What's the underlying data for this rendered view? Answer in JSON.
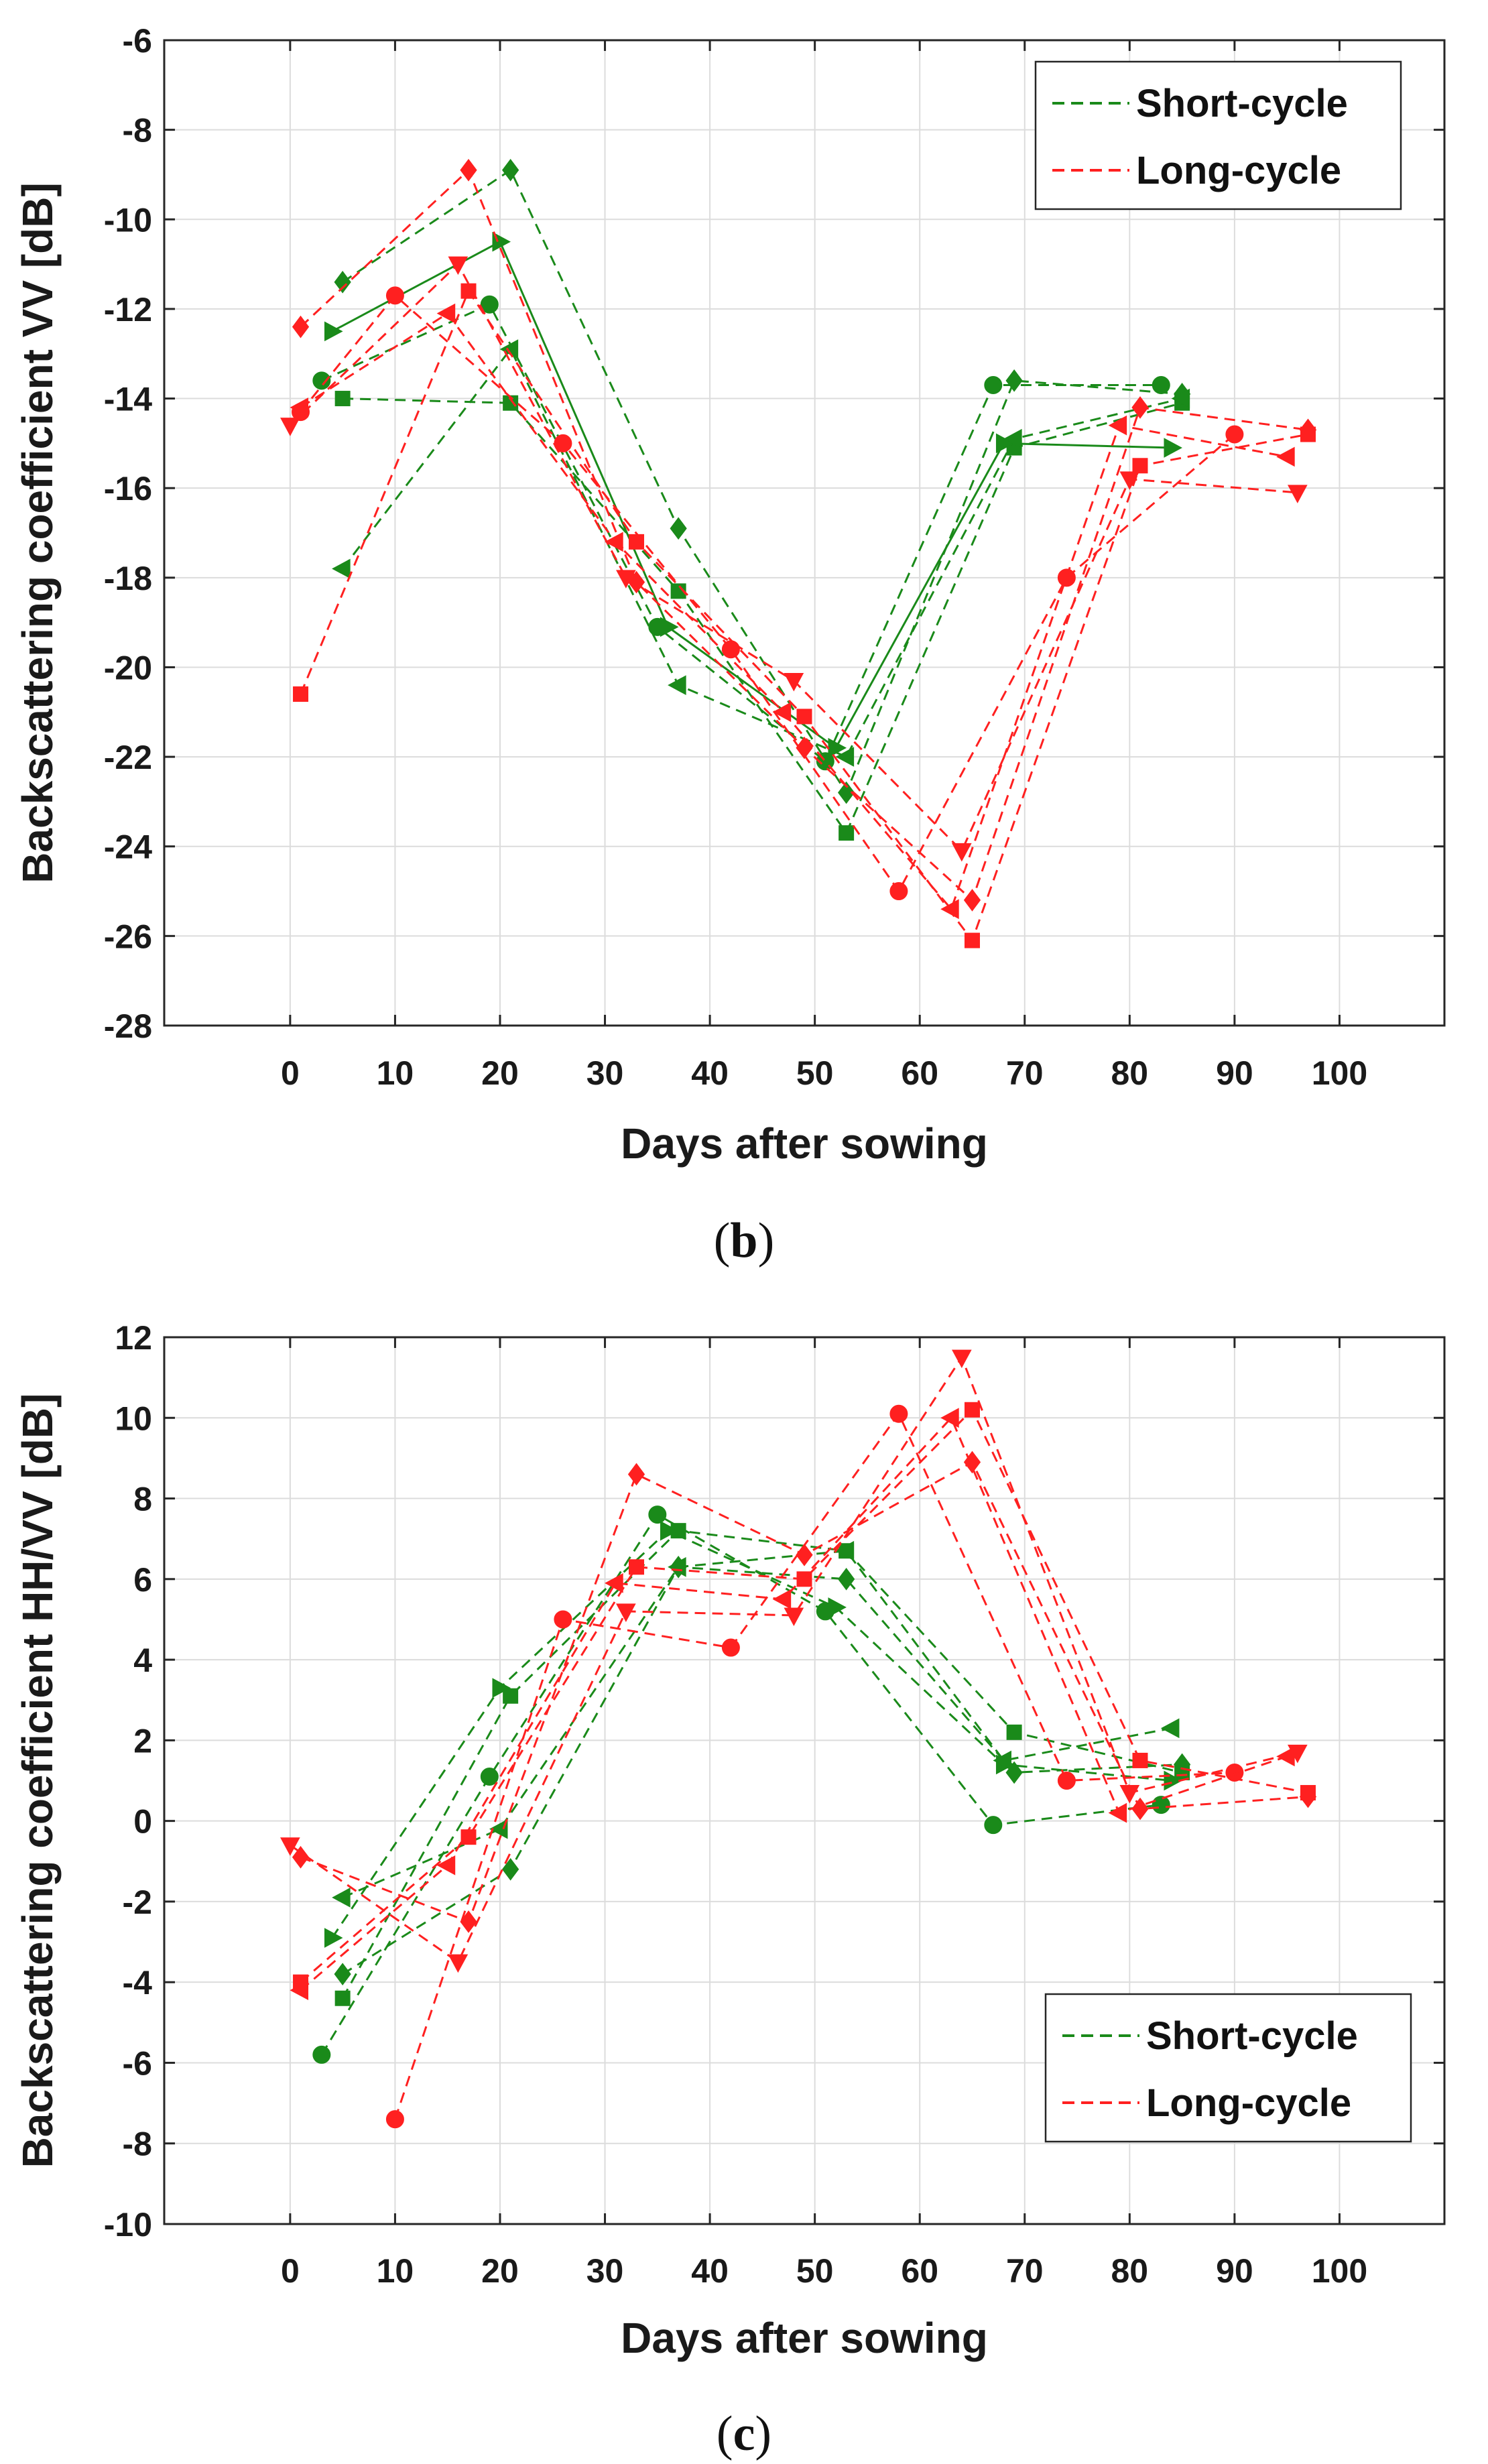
{
  "chart_data": [
    {
      "type": "line",
      "panel": "b",
      "caption_label": "b",
      "xlabel": "Days after sowing",
      "ylabel": "Backscattering coefficient VV [dB]",
      "xlim": [
        -12,
        110
      ],
      "ylim": [
        -28,
        -6
      ],
      "xticks": [
        0,
        10,
        20,
        30,
        40,
        50,
        60,
        70,
        80,
        90,
        100
      ],
      "yticks": [
        -28,
        -26,
        -24,
        -22,
        -20,
        -18,
        -16,
        -14,
        -12,
        -10,
        -8,
        -6
      ],
      "grid": true,
      "legend": {
        "position": "top-right",
        "entries": [
          {
            "label": "Short-cycle",
            "color": "#1a8a1a"
          },
          {
            "label": "Long-cycle",
            "color": "#ff2020"
          }
        ]
      },
      "series": [
        {
          "name": "Short-cycle",
          "color": "#1a8a1a",
          "marker": "circle",
          "style": "dashed",
          "points": [
            [
              3,
              -13.6
            ],
            [
              19,
              -11.9
            ],
            [
              35,
              -19.1
            ],
            [
              51,
              -22.1
            ],
            [
              67,
              -13.7
            ],
            [
              83,
              -13.7
            ]
          ]
        },
        {
          "name": "Short-cycle",
          "color": "#1a8a1a",
          "marker": "square",
          "style": "dashed",
          "points": [
            [
              5,
              -14.0
            ],
            [
              21,
              -14.1
            ],
            [
              37,
              -18.3
            ],
            [
              53,
              -23.7
            ],
            [
              69,
              -15.1
            ],
            [
              85,
              -14.1
            ]
          ]
        },
        {
          "name": "Short-cycle",
          "color": "#1a8a1a",
          "marker": "diamond",
          "style": "dashed",
          "points": [
            [
              5,
              -11.4
            ],
            [
              21,
              -8.9
            ],
            [
              37,
              -16.9
            ],
            [
              53,
              -22.8
            ],
            [
              69,
              -13.6
            ],
            [
              85,
              -13.9
            ]
          ]
        },
        {
          "name": "Short-cycle",
          "color": "#1a8a1a",
          "marker": "tri-right",
          "style": "solid",
          "points": [
            [
              4,
              -12.5
            ],
            [
              20,
              -10.5
            ],
            [
              36,
              -19.1
            ],
            [
              52,
              -21.8
            ],
            [
              68,
              -15.0
            ],
            [
              84,
              -15.1
            ]
          ]
        },
        {
          "name": "Short-cycle",
          "color": "#1a8a1a",
          "marker": "tri-left",
          "style": "dashed",
          "points": [
            [
              5,
              -17.8
            ],
            [
              21,
              -12.9
            ],
            [
              37,
              -20.4
            ],
            [
              53,
              -22.0
            ],
            [
              69,
              -14.9
            ],
            [
              85,
              -14.0
            ]
          ]
        },
        {
          "name": "Long-cycle",
          "color": "#ff2020",
          "marker": "circle",
          "style": "dashed",
          "points": [
            [
              1,
              -14.3
            ],
            [
              10,
              -11.7
            ],
            [
              26,
              -15.0
            ],
            [
              42,
              -19.6
            ],
            [
              58,
              -25.0
            ],
            [
              74,
              -18.0
            ],
            [
              90,
              -14.8
            ]
          ]
        },
        {
          "name": "Long-cycle",
          "color": "#ff2020",
          "marker": "square",
          "style": "dashed",
          "points": [
            [
              1,
              -20.6
            ],
            [
              17,
              -11.6
            ],
            [
              33,
              -17.2
            ],
            [
              49,
              -21.1
            ],
            [
              65,
              -26.1
            ],
            [
              81,
              -15.5
            ],
            [
              97,
              -14.8
            ]
          ]
        },
        {
          "name": "Long-cycle",
          "color": "#ff2020",
          "marker": "diamond",
          "style": "dashed",
          "points": [
            [
              1,
              -12.4
            ],
            [
              17,
              -8.9
            ],
            [
              33,
              -18.1
            ],
            [
              49,
              -21.8
            ],
            [
              65,
              -25.2
            ],
            [
              81,
              -14.2
            ],
            [
              97,
              -14.7
            ]
          ]
        },
        {
          "name": "Long-cycle",
          "color": "#ff2020",
          "marker": "tri-down",
          "style": "dashed",
          "points": [
            [
              0,
              -14.6
            ],
            [
              16,
              -11.0
            ],
            [
              32,
              -18.0
            ],
            [
              48,
              -20.3
            ],
            [
              64,
              -24.1
            ],
            [
              80,
              -15.8
            ],
            [
              96,
              -16.1
            ]
          ]
        },
        {
          "name": "Long-cycle",
          "color": "#ff2020",
          "marker": "tri-left",
          "style": "dashed",
          "points": [
            [
              1,
              -14.2
            ],
            [
              15,
              -12.1
            ],
            [
              31,
              -17.2
            ],
            [
              47,
              -21.0
            ],
            [
              63,
              -25.4
            ],
            [
              79,
              -14.6
            ],
            [
              95,
              -15.3
            ]
          ]
        }
      ]
    },
    {
      "type": "line",
      "panel": "c",
      "caption_label": "c",
      "xlabel": "Days after sowing",
      "ylabel": "Backscattering coefficient HH/VV [dB]",
      "xlim": [
        -12,
        110
      ],
      "ylim": [
        -10,
        12
      ],
      "xticks": [
        0,
        10,
        20,
        30,
        40,
        50,
        60,
        70,
        80,
        90,
        100
      ],
      "yticks": [
        -10,
        -8,
        -6,
        -4,
        -2,
        0,
        2,
        4,
        6,
        8,
        10,
        12
      ],
      "grid": true,
      "legend": {
        "position": "bottom-right",
        "entries": [
          {
            "label": "Short-cycle",
            "color": "#1a8a1a"
          },
          {
            "label": "Long-cycle",
            "color": "#ff2020"
          }
        ]
      },
      "series": [
        {
          "name": "Short-cycle",
          "color": "#1a8a1a",
          "marker": "circle",
          "style": "dashed",
          "points": [
            [
              3,
              -5.8
            ],
            [
              19,
              1.1
            ],
            [
              35,
              7.6
            ],
            [
              51,
              5.2
            ],
            [
              67,
              -0.1
            ],
            [
              83,
              0.4
            ]
          ]
        },
        {
          "name": "Short-cycle",
          "color": "#1a8a1a",
          "marker": "square",
          "style": "dashed",
          "points": [
            [
              5,
              -4.4
            ],
            [
              21,
              3.1
            ],
            [
              37,
              7.2
            ],
            [
              53,
              6.7
            ],
            [
              69,
              2.2
            ],
            [
              85,
              1.2
            ]
          ]
        },
        {
          "name": "Short-cycle",
          "color": "#1a8a1a",
          "marker": "diamond",
          "style": "dashed",
          "points": [
            [
              5,
              -3.8
            ],
            [
              21,
              -1.2
            ],
            [
              37,
              6.3
            ],
            [
              53,
              6.0
            ],
            [
              69,
              1.2
            ],
            [
              85,
              1.4
            ]
          ]
        },
        {
          "name": "Short-cycle",
          "color": "#1a8a1a",
          "marker": "tri-right",
          "style": "dashed",
          "points": [
            [
              4,
              -2.9
            ],
            [
              20,
              3.3
            ],
            [
              36,
              7.2
            ],
            [
              52,
              5.3
            ],
            [
              68,
              1.4
            ],
            [
              84,
              1.0
            ]
          ]
        },
        {
          "name": "Short-cycle",
          "color": "#1a8a1a",
          "marker": "tri-left",
          "style": "dashed",
          "points": [
            [
              5,
              -1.9
            ],
            [
              20,
              -0.2
            ],
            [
              37,
              6.3
            ],
            [
              53,
              6.7
            ],
            [
              68,
              1.5
            ],
            [
              84,
              2.3
            ]
          ]
        },
        {
          "name": "Long-cycle",
          "color": "#ff2020",
          "marker": "circle",
          "style": "dashed",
          "points": [
            [
              10,
              -7.4
            ],
            [
              26,
              5.0
            ],
            [
              42,
              4.3
            ],
            [
              58,
              10.1
            ],
            [
              74,
              1.0
            ],
            [
              90,
              1.2
            ]
          ]
        },
        {
          "name": "Long-cycle",
          "color": "#ff2020",
          "marker": "square",
          "style": "dashed",
          "points": [
            [
              1,
              -4.0
            ],
            [
              17,
              -0.4
            ],
            [
              33,
              6.3
            ],
            [
              49,
              6.0
            ],
            [
              65,
              10.2
            ],
            [
              81,
              1.5
            ],
            [
              97,
              0.7
            ]
          ]
        },
        {
          "name": "Long-cycle",
          "color": "#ff2020",
          "marker": "diamond",
          "style": "dashed",
          "points": [
            [
              1,
              -0.9
            ],
            [
              17,
              -2.5
            ],
            [
              33,
              8.6
            ],
            [
              49,
              6.6
            ],
            [
              65,
              8.9
            ],
            [
              81,
              0.3
            ],
            [
              97,
              0.6
            ]
          ]
        },
        {
          "name": "Long-cycle",
          "color": "#ff2020",
          "marker": "tri-down",
          "style": "dashed",
          "points": [
            [
              0,
              -0.6
            ],
            [
              16,
              -3.5
            ],
            [
              32,
              5.2
            ],
            [
              48,
              5.1
            ],
            [
              64,
              11.5
            ],
            [
              80,
              0.7
            ],
            [
              96,
              1.7
            ]
          ]
        },
        {
          "name": "Long-cycle",
          "color": "#ff2020",
          "marker": "tri-left",
          "style": "dashed",
          "points": [
            [
              1,
              -4.2
            ],
            [
              15,
              -1.1
            ],
            [
              31,
              5.9
            ],
            [
              47,
              5.5
            ],
            [
              63,
              10.0
            ],
            [
              79,
              0.2
            ],
            [
              95,
              1.6
            ]
          ]
        }
      ]
    }
  ]
}
